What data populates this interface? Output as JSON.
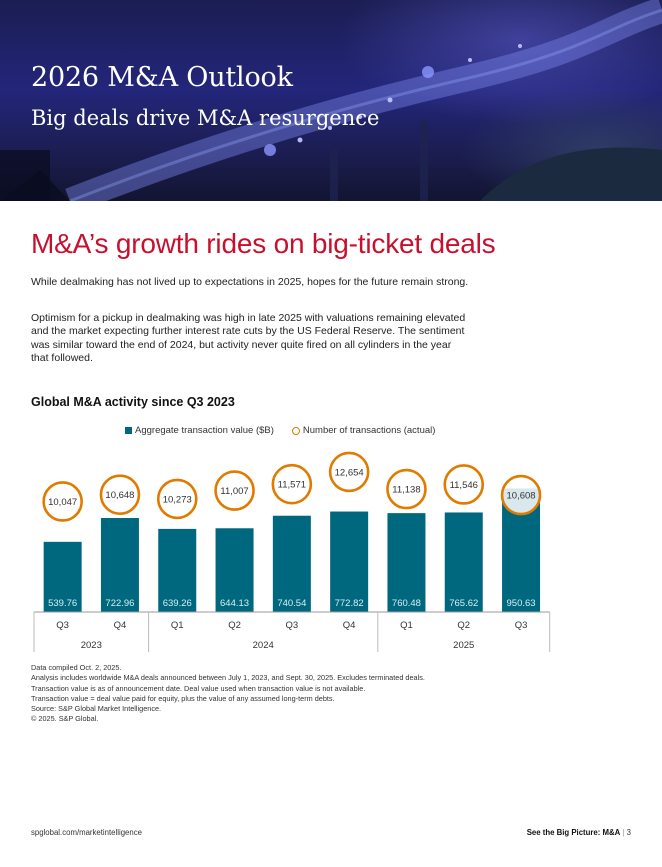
{
  "header": {
    "title": "2026 M&A Outlook",
    "subtitle": "Big deals drive M&A resurgence"
  },
  "article": {
    "headline": "M&A’s growth rides on big-ticket deals",
    "paragraph1": "While dealmaking has not lived up to expectations in 2025, hopes for the future remain strong.",
    "paragraph2": "Optimism for a pickup in dealmaking was high in late 2025 with valuations remaining elevated and the market expecting further interest rate cuts by the US Federal Reserve. The sentiment was similar toward the end of 2024, but activity never quite fired on all cylinders in the year that followed."
  },
  "chart_data": {
    "type": "bar",
    "title": "Global M&A activity since Q3 2023",
    "categories": [
      "Q3",
      "Q4",
      "Q1",
      "Q2",
      "Q3",
      "Q4",
      "Q1",
      "Q2",
      "Q3"
    ],
    "years": [
      {
        "label": "2023",
        "span": 2
      },
      {
        "label": "2024",
        "span": 4
      },
      {
        "label": "2025",
        "span": 3
      }
    ],
    "series": [
      {
        "name": "Aggregate transaction value ($B)",
        "values": [
          539.76,
          722.96,
          639.26,
          644.13,
          740.54,
          772.82,
          760.48,
          765.62,
          950.63
        ],
        "labels": [
          "539.76",
          "722.96",
          "639.26",
          "644.13",
          "740.54",
          "772.82",
          "760.48",
          "765.62",
          "950.63"
        ],
        "color": "#00687e"
      },
      {
        "name": "Number of transactions (actual)",
        "values": [
          10047,
          10648,
          10273,
          11007,
          11571,
          12654,
          11138,
          11546,
          10608
        ],
        "labels": [
          "10,047",
          "10,648",
          "10,273",
          "11,007",
          "11,571",
          "12,654",
          "11,138",
          "11,546",
          "10,608"
        ],
        "color": "#e07b00"
      }
    ],
    "legend_position": "top",
    "grid": false
  },
  "notes": [
    "Data compiled Oct. 2, 2025.",
    "Analysis includes worldwide M&A deals announced between July 1, 2023, and Sept. 30, 2025. Excludes terminated deals.",
    "Transaction value is as of announcement date. Deal value used when transaction value is not available.",
    "Transaction value = deal value paid for equity, plus the value of any assumed long-term debts.",
    "Source: S&P Global Market Intelligence.",
    "© 2025. S&P Global."
  ],
  "footer": {
    "url": "spglobal.com/marketintelligence",
    "series_label": "See the Big Picture: M&A",
    "separator": "|",
    "page_number": "3"
  }
}
